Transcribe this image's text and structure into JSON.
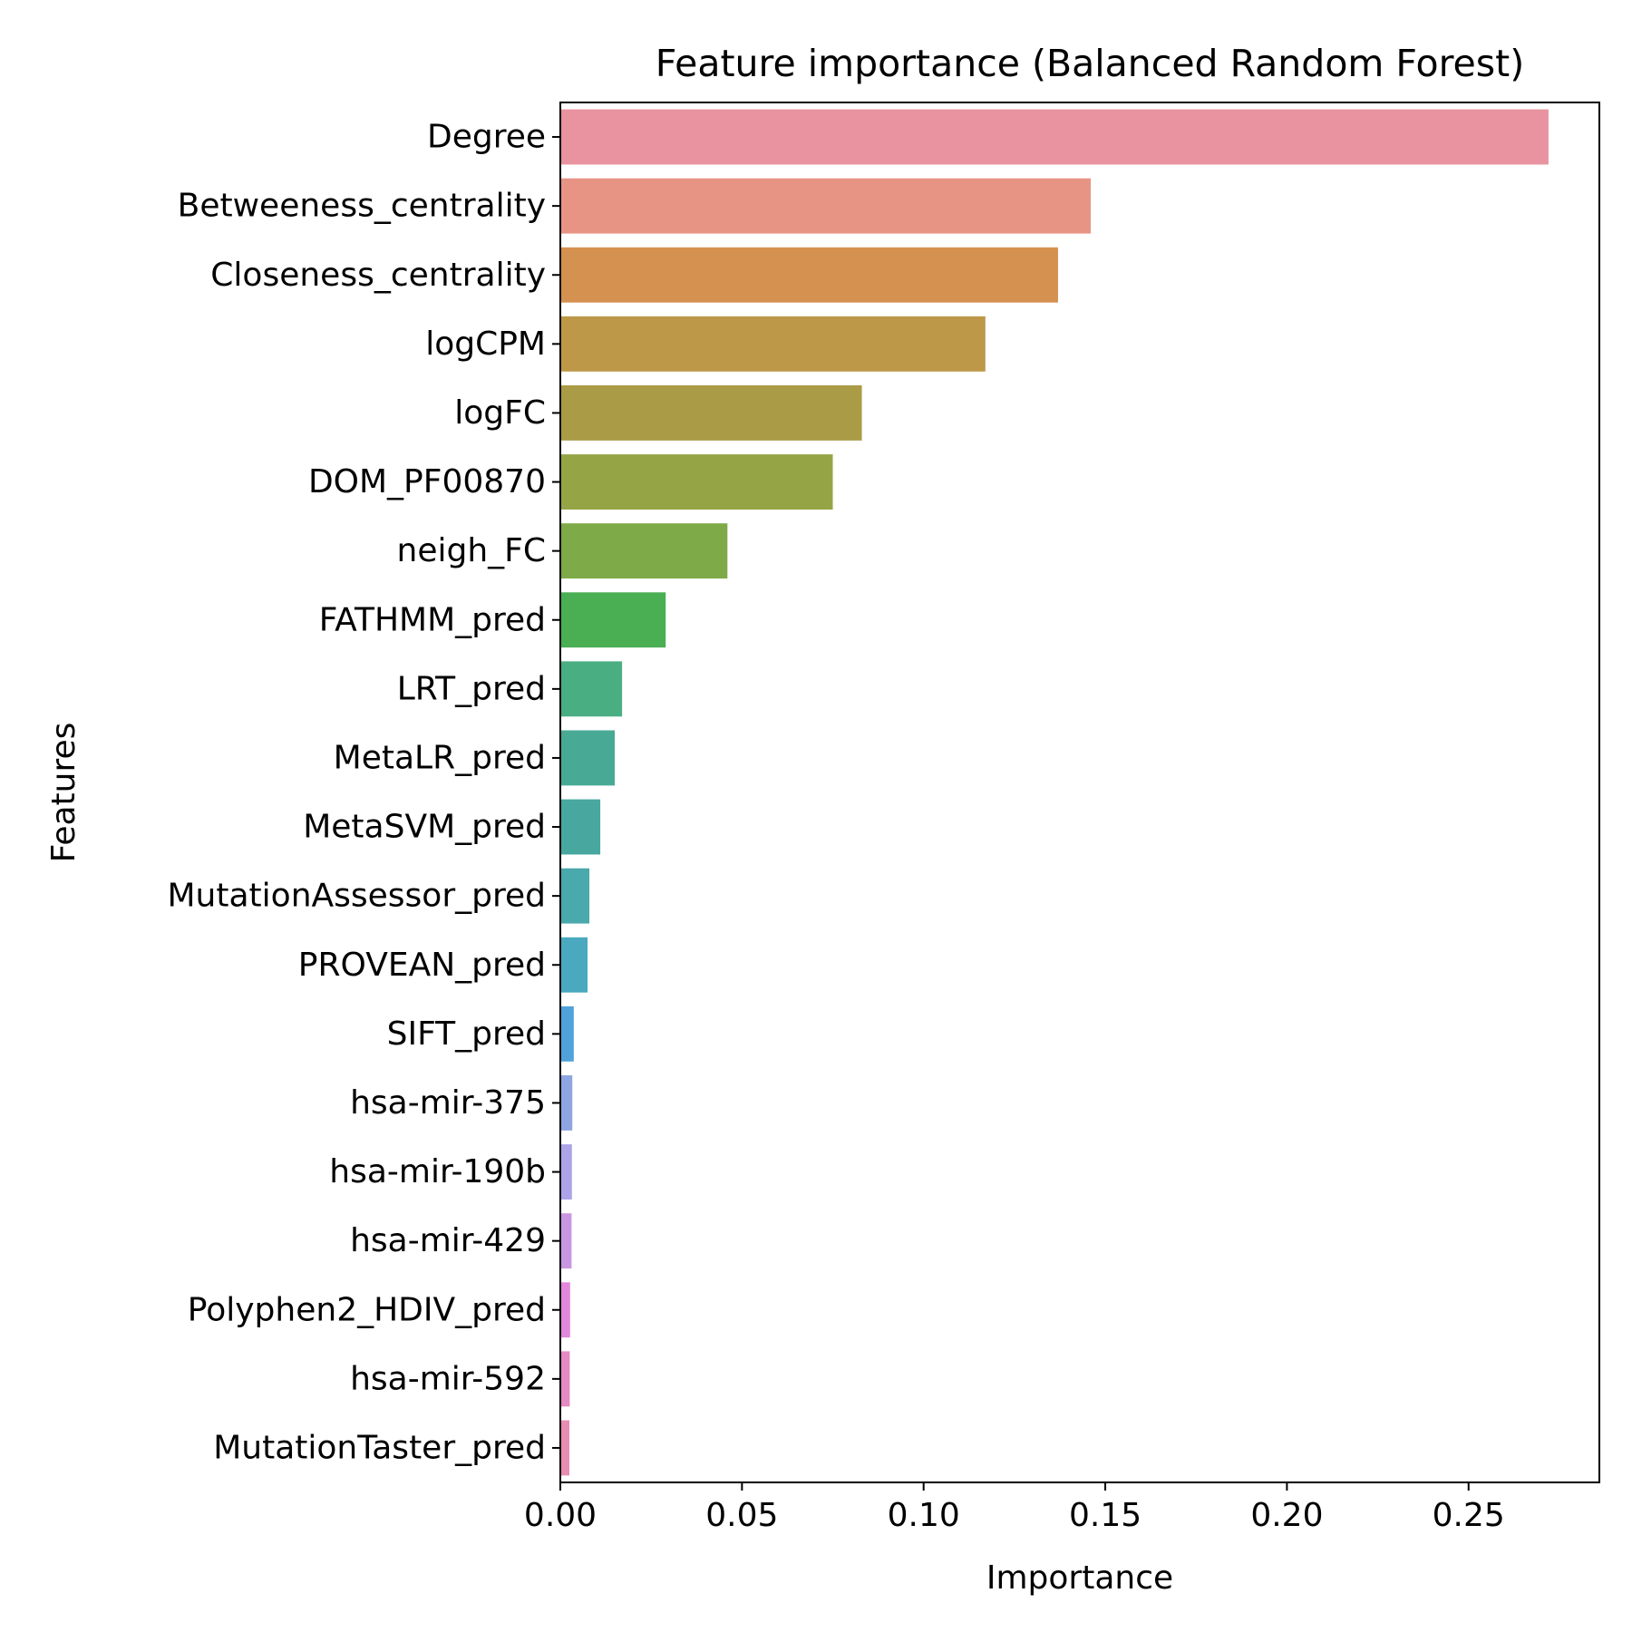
{
  "chart_data": {
    "type": "bar",
    "orientation": "horizontal",
    "title": "Feature importance (Balanced Random Forest)",
    "xlabel": "Importance",
    "ylabel": "Features",
    "xlim": [
      0,
      0.286
    ],
    "xticks": [
      "0.00",
      "0.05",
      "0.10",
      "0.15",
      "0.20",
      "0.25"
    ],
    "xtick_values": [
      0,
      0.05,
      0.1,
      0.15,
      0.2,
      0.25
    ],
    "grid": false,
    "legend": "none",
    "categories": [
      "Degree",
      "Betweeness_centrality",
      "Closeness_centrality",
      "logCPM",
      "logFC",
      "DOM_PF00870",
      "neigh_FC",
      "FATHMM_pred",
      "LRT_pred",
      "MetaLR_pred",
      "MetaSVM_pred",
      "MutationAssessor_pred",
      "PROVEAN_pred",
      "SIFT_pred",
      "hsa-mir-375",
      "hsa-mir-190b",
      "hsa-mir-429",
      "Polyphen2_HDIV_pred",
      "hsa-mir-592",
      "MutationTaster_pred"
    ],
    "values": [
      0.272,
      0.146,
      0.137,
      0.117,
      0.083,
      0.075,
      0.046,
      0.029,
      0.017,
      0.015,
      0.011,
      0.008,
      0.0075,
      0.0037,
      0.0033,
      0.0032,
      0.0031,
      0.0027,
      0.0026,
      0.0025
    ],
    "colors": [
      "#e8939f",
      "#e89485",
      "#d5914f",
      "#bd9848",
      "#aa9c46",
      "#95a545",
      "#7eaa47",
      "#4aae53",
      "#4aae83",
      "#48aa94",
      "#48a79f",
      "#4aa9ac",
      "#4aa9bf",
      "#51a2da",
      "#8da6e2",
      "#ada4e8",
      "#c997e2",
      "#e188dc",
      "#e58ac2",
      "#e78db1"
    ]
  }
}
